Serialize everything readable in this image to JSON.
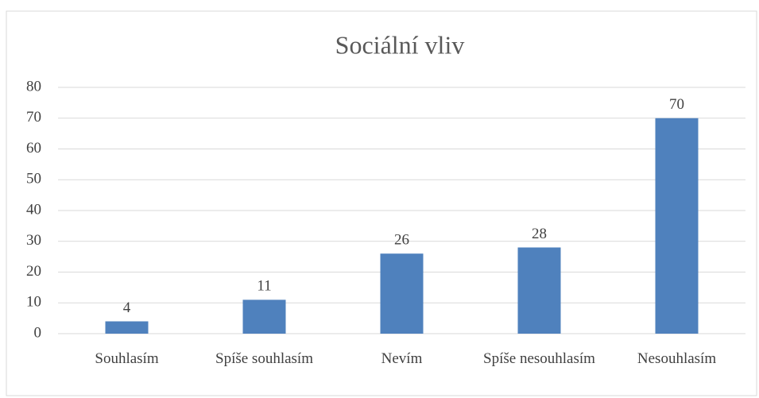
{
  "chart_data": {
    "type": "bar",
    "title": "Sociální vliv",
    "categories": [
      "Souhlasím",
      "Spíše souhlasím",
      "Nevím",
      "Spíše nesouhlasím",
      "Nesouhlasím"
    ],
    "values": [
      4,
      11,
      26,
      28,
      70
    ],
    "color": "#4f81bd",
    "ylim": [
      0,
      80
    ],
    "yticks": [
      0,
      10,
      20,
      30,
      40,
      50,
      60,
      70,
      80
    ],
    "grid": true
  }
}
